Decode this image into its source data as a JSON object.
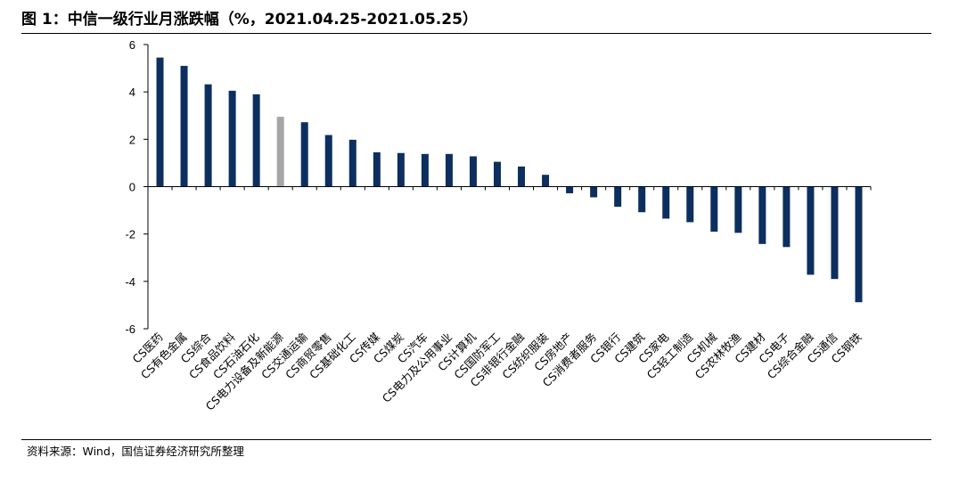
{
  "header": {
    "title": "图 1：中信一级行业月涨跌幅（%，2021.04.25-2021.05.25）"
  },
  "footer": {
    "source": "资料来源：Wind，国信证券经济研究所整理"
  },
  "chart_data": {
    "type": "bar",
    "title": "图 1：中信一级行业月涨跌幅（%，2021.04.25-2021.05.25）",
    "xlabel": "",
    "ylabel": "",
    "ylim": [
      -6,
      6
    ],
    "yticks": [
      6,
      4,
      2,
      0,
      -2,
      -4,
      -6
    ],
    "grid": false,
    "legend": "none",
    "colors": {
      "default": "#0c2f5f",
      "highlight": "#a6a6a6"
    },
    "highlight_index": 5,
    "categories": [
      "CS医药",
      "CS有色金属",
      "CS综合",
      "CS食品饮料",
      "CS石油石化",
      "CS电力设备及新能源",
      "CS交通运输",
      "CS商贸零售",
      "CS基础化工",
      "CS传媒",
      "CS煤炭",
      "CS汽车",
      "CS电力及公用事业",
      "CS计算机",
      "CS国防军工",
      "CS非银行金融",
      "CS纺织服装",
      "CS房地产",
      "CS消费者服务",
      "CS银行",
      "CS建筑",
      "CS家电",
      "CS轻工制造",
      "CS机械",
      "CS农林牧渔",
      "CS建材",
      "CS电子",
      "CS综合金融",
      "CS通信",
      "CS钢铁"
    ],
    "values": [
      5.45,
      5.1,
      4.32,
      4.05,
      3.9,
      2.95,
      2.72,
      2.18,
      1.98,
      1.45,
      1.42,
      1.38,
      1.38,
      1.28,
      1.05,
      0.85,
      0.5,
      -0.28,
      -0.45,
      -0.85,
      -1.08,
      -1.35,
      -1.5,
      -1.9,
      -1.95,
      -2.42,
      -2.55,
      -3.72,
      -3.9,
      -4.88
    ]
  }
}
